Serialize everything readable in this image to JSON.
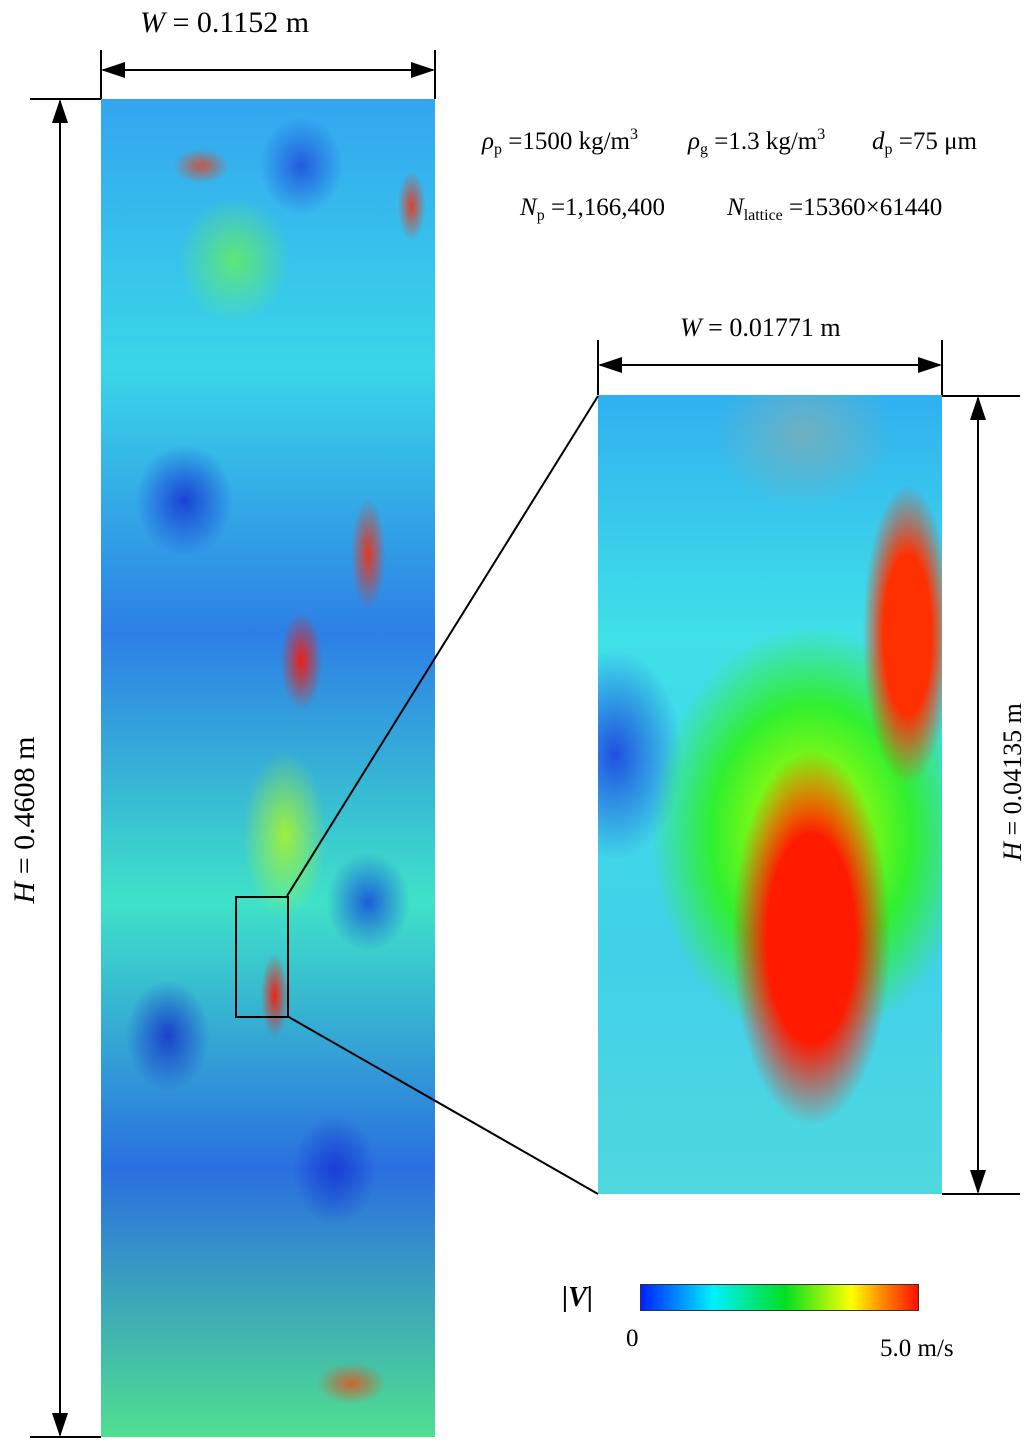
{
  "figure": {
    "domain_width_label": {
      "var": "W",
      "value": " = 0.1152 m"
    },
    "domain_height_label": {
      "var": "H",
      "value": " = 0.4608 m"
    },
    "zoom_width_label": {
      "var": "W",
      "value": " = 0.01771 m"
    },
    "zoom_height_label": {
      "var": "H",
      "value": " = 0.04135 m"
    },
    "parameters": {
      "rho_p": {
        "sym": "ρ",
        "sub": "p",
        "value": " =1500 kg/m",
        "sup": "3"
      },
      "rho_g": {
        "sym": "ρ",
        "sub": "g",
        "value": " =1.3 kg/m",
        "sup": "3"
      },
      "d_p": {
        "sym": "d",
        "sub": "p",
        "value": " =75 μm"
      },
      "N_p": {
        "sym": "N",
        "sub": "p",
        "value": " =1,166,400"
      },
      "N_lattice": {
        "sym": "N",
        "sub": "lattice",
        "value": " =15360×61440"
      }
    },
    "colorbar": {
      "label": "|V|",
      "min_label": "0",
      "max_label": "5.0 m/s",
      "min": 0,
      "max": 5.0,
      "unit": "m/s",
      "colormap": [
        "#0020ff",
        "#00f0ff",
        "#00e020",
        "#ffff00",
        "#ff8000",
        "#ff1000"
      ]
    }
  }
}
